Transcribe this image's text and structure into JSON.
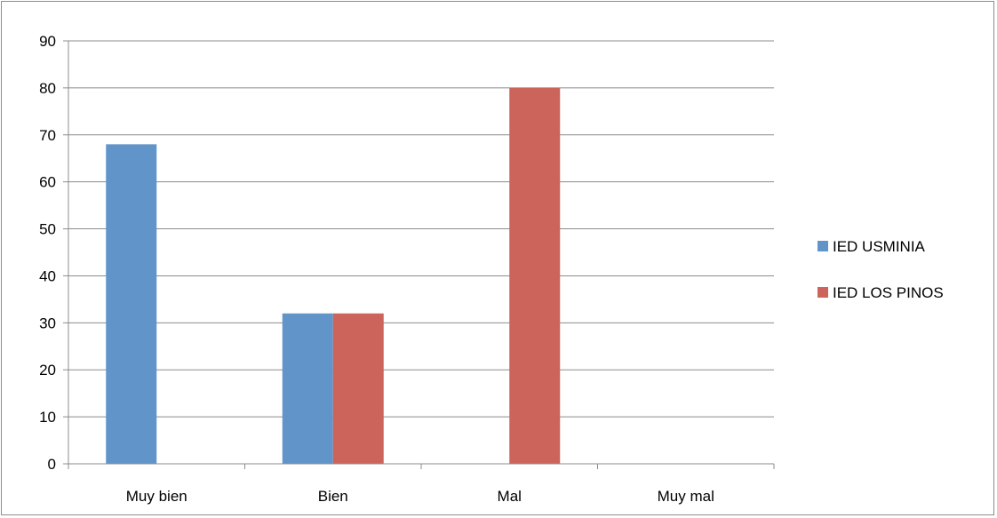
{
  "chart_data": {
    "type": "bar",
    "title": "",
    "xlabel": "",
    "ylabel": "",
    "categories": [
      "Muy bien",
      "Bien",
      "Mal",
      "Muy mal"
    ],
    "series": [
      {
        "name": "IED USMINIA",
        "values": [
          68,
          32,
          0,
          0
        ],
        "color": "#6195C9"
      },
      {
        "name": "IED LOS PINOS",
        "values": [
          0,
          32,
          80,
          0
        ],
        "color": "#CD645C"
      }
    ],
    "ylim": [
      0,
      90
    ],
    "yticks": [
      0,
      10,
      20,
      30,
      40,
      50,
      60,
      70,
      80,
      90
    ],
    "grid": true,
    "legend": "right",
    "gridline_color": "#8C8C8C",
    "axis_color": "#8C8C8C"
  }
}
